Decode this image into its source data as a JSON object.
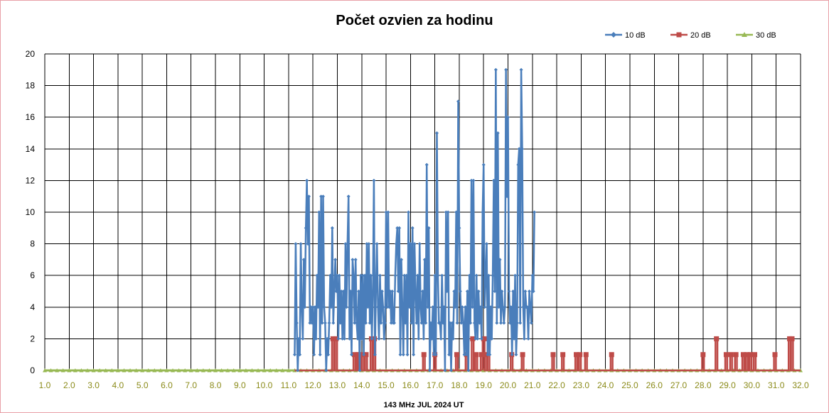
{
  "chart_data": {
    "type": "line",
    "title": "Počet ozvien za hodinu",
    "xlabel": "143 MHz JUL  2024  UT",
    "ylabel": "",
    "xlim": [
      1.0,
      32.0
    ],
    "ylim": [
      0,
      20
    ],
    "y_ticks": [
      "0",
      "2",
      "4",
      "6",
      "8",
      "10",
      "12",
      "14",
      "16",
      "18",
      "20"
    ],
    "x_ticks": [
      "1.0",
      "2.0",
      "3.0",
      "4.0",
      "5.0",
      "6.0",
      "7.0",
      "8.0",
      "9.0",
      "10.0",
      "11.0",
      "12.0",
      "13.0",
      "14.0",
      "15.0",
      "16.0",
      "17.0",
      "18.0",
      "19.0",
      "20.0",
      "21.0",
      "22.0",
      "23.0",
      "24.0",
      "25.0",
      "26.0",
      "27.0",
      "28.0",
      "29.0",
      "30.0",
      "31.0",
      "32.0"
    ],
    "grid": true,
    "legend_position": "top-right",
    "step_hours": 1,
    "series": [
      {
        "name": "10 dB",
        "color": "#4a7ebb",
        "marker": "diamond",
        "start_x": 11.25,
        "values": [
          1,
          8,
          3,
          0,
          2,
          1,
          8,
          4,
          2,
          7,
          4,
          9,
          12,
          8,
          11,
          3,
          4,
          3,
          4,
          1,
          4,
          2,
          6,
          4,
          10,
          1,
          11,
          3,
          11,
          4,
          3,
          0,
          2,
          1,
          3,
          6,
          4,
          9,
          3,
          5,
          7,
          5,
          6,
          2,
          6,
          3,
          5,
          2,
          5,
          2,
          8,
          4,
          8,
          11,
          2,
          5,
          1,
          7,
          6,
          3,
          7,
          3,
          2,
          5,
          0,
          6,
          2,
          6,
          1,
          6,
          3,
          8,
          4,
          8,
          3,
          6,
          2,
          5,
          12,
          1,
          5,
          8,
          4,
          2,
          6,
          3,
          5,
          4,
          2,
          3,
          10,
          4,
          10,
          4,
          5,
          3,
          5,
          3,
          3,
          6,
          8,
          9,
          5,
          9,
          1,
          7,
          4,
          1,
          6,
          3,
          6,
          1,
          10,
          4,
          8,
          3,
          9,
          1,
          8,
          5,
          3,
          6,
          2,
          8,
          4,
          3,
          5,
          2,
          7,
          3,
          13,
          4,
          9,
          0,
          3,
          2,
          4,
          1,
          6,
          1,
          15,
          6,
          3,
          3,
          2,
          6,
          3,
          4,
          0,
          10,
          5,
          10,
          1,
          3,
          0,
          3,
          2,
          5,
          4,
          10,
          3,
          17,
          9,
          5,
          3,
          4,
          3,
          1,
          4,
          1,
          5,
          0,
          6,
          3,
          12,
          4,
          12,
          3,
          2,
          6,
          2,
          5,
          3,
          4,
          2,
          10,
          13,
          4,
          6,
          8,
          1,
          6,
          1,
          4,
          2,
          6,
          12,
          5,
          19,
          3,
          15,
          4,
          7,
          3,
          5,
          4,
          3,
          4,
          19,
          11,
          16,
          5,
          3,
          4,
          1,
          5,
          2,
          6,
          1,
          3,
          13,
          14,
          3,
          19,
          14,
          4,
          2,
          5,
          4,
          4,
          2,
          5,
          4,
          3,
          6,
          5,
          10
        ]
      },
      {
        "name": "20 dB",
        "color": "#be4b48",
        "marker": "square",
        "points": [
          [
            12.82,
            2
          ],
          [
            12.95,
            2
          ],
          [
            13.7,
            1
          ],
          [
            13.85,
            1
          ],
          [
            13.92,
            1
          ],
          [
            14.05,
            1
          ],
          [
            14.18,
            1
          ],
          [
            14.4,
            2
          ],
          [
            14.52,
            2
          ],
          [
            16.55,
            1
          ],
          [
            17.0,
            1
          ],
          [
            17.9,
            1
          ],
          [
            18.3,
            1
          ],
          [
            18.55,
            2
          ],
          [
            18.7,
            1
          ],
          [
            18.92,
            1
          ],
          [
            19.0,
            2
          ],
          [
            19.1,
            1
          ],
          [
            19.2,
            2
          ],
          [
            20.15,
            1
          ],
          [
            20.6,
            1
          ],
          [
            21.85,
            1
          ],
          [
            22.25,
            1
          ],
          [
            22.8,
            1
          ],
          [
            22.95,
            1
          ],
          [
            23.2,
            1
          ],
          [
            24.25,
            1
          ],
          [
            28.0,
            1
          ],
          [
            28.55,
            2
          ],
          [
            28.95,
            1
          ],
          [
            29.15,
            1
          ],
          [
            29.35,
            1
          ],
          [
            29.65,
            1
          ],
          [
            29.8,
            1
          ],
          [
            29.95,
            1
          ],
          [
            30.12,
            1
          ],
          [
            30.95,
            1
          ],
          [
            31.55,
            2
          ],
          [
            31.65,
            2
          ]
        ]
      },
      {
        "name": "30 dB",
        "color": "#98b954",
        "marker": "triangle",
        "x_range": [
          1.0,
          32.0
        ],
        "values": [
          0
        ]
      }
    ]
  }
}
